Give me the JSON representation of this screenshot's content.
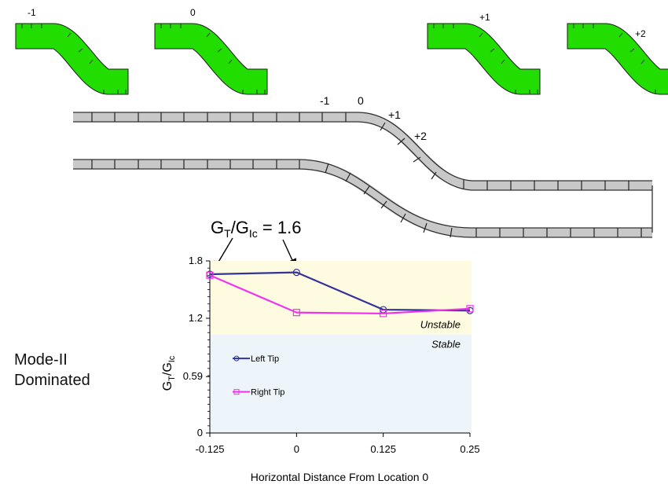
{
  "colors": {
    "ply_green": "#22dd00",
    "ply_gray": "#c8c8c8",
    "outline": "#303030",
    "unstable_region": "#fffbe0",
    "stable_region": "#eef5fa",
    "left_tip": "#333399",
    "right_tip": "#ee33ee"
  },
  "thumbnails": [
    {
      "label": "-1",
      "marker": -1
    },
    {
      "label": "0",
      "marker": 0
    },
    {
      "label": "+1",
      "marker": 1
    },
    {
      "label": "+2",
      "marker": 2
    }
  ],
  "specimen": {
    "location_labels": [
      "-1",
      "0",
      "+1",
      "+2"
    ]
  },
  "annotation": {
    "ratio_prefix": "G",
    "ratio_sub_t": "T",
    "ratio_mid": "/G",
    "ratio_sub_ic": "Ic",
    "ratio_value": " = 1.6"
  },
  "mode_label": {
    "line1": "Mode-II",
    "line2": "Dominated"
  },
  "chart_data": {
    "type": "line",
    "x": [
      -0.125,
      0,
      0.125,
      0.25
    ],
    "x_ticks": [
      "-0.125",
      "0",
      "0.125",
      "0.25"
    ],
    "y_ticks": [
      "0",
      "0.59",
      "1.2",
      "1.8"
    ],
    "y_tick_values": [
      0,
      0.59,
      1.2,
      1.8
    ],
    "xlim": [
      -0.125,
      0.25
    ],
    "ylim": [
      0,
      1.8
    ],
    "xlabel": "Horizontal Distance From Location 0",
    "ylabel": {
      "main": "G",
      "sub1": "T",
      "mid": "/G",
      "sub2": "Ic"
    },
    "regions": [
      {
        "label": "Unstable",
        "from": 1.03,
        "to": 1.8
      },
      {
        "label": "Stable",
        "from": 0,
        "to": 1.03
      }
    ],
    "series": [
      {
        "name": "Left Tip",
        "marker": "circle",
        "values": [
          1.66,
          1.68,
          1.29,
          1.28
        ]
      },
      {
        "name": "Right Tip",
        "marker": "square",
        "values": [
          1.65,
          1.26,
          1.25,
          1.3
        ]
      }
    ]
  }
}
